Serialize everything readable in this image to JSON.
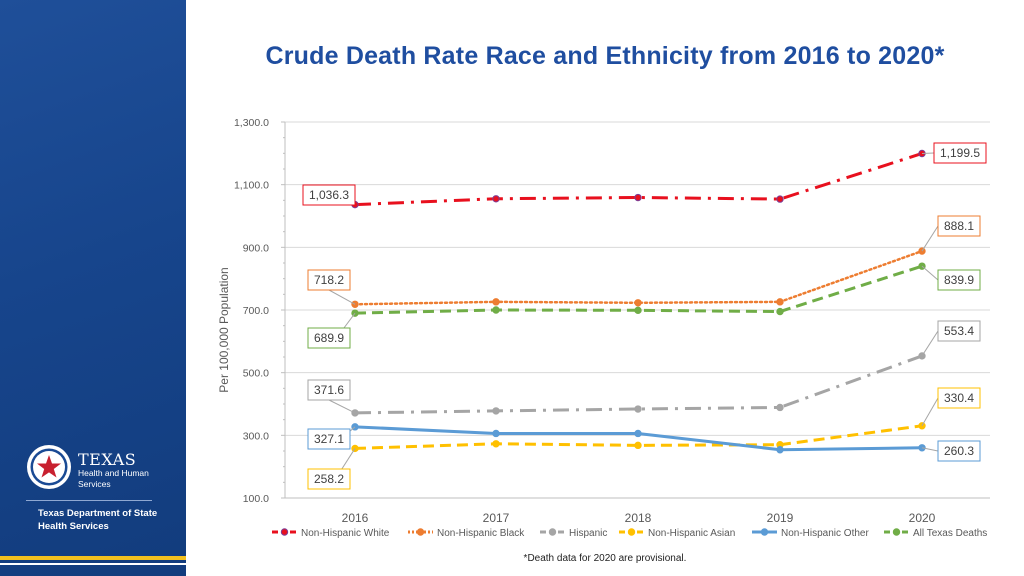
{
  "title": "Crude Death Rate Race and Ethnicity from 2016 to 2020*",
  "footnote": "*Death data for 2020 are provisional.",
  "branding": {
    "texas": "TEXAS",
    "hhs_line1": "Health and Human",
    "hhs_line2": "Services",
    "dept_line1": "Texas Department of State",
    "dept_line2": "Health Services",
    "colors": {
      "sidebar": "#1a4a94",
      "accent": "#f2c01e"
    }
  },
  "chart_data": {
    "type": "line",
    "title": "Crude Death Rate Race and Ethnicity from 2016 to 2020*",
    "xlabel": "",
    "ylabel": "Per 100,000 Population",
    "x": [
      "2016",
      "2017",
      "2018",
      "2019",
      "2020"
    ],
    "ylim": [
      100,
      1300
    ],
    "yticks": [
      100,
      300,
      500,
      700,
      900,
      1100,
      1300
    ],
    "ytick_labels": [
      "100.0",
      "300.0",
      "500.0",
      "700.0",
      "900.0",
      "1,100.0",
      "1,300.0"
    ],
    "grid": true,
    "legend": "bottom",
    "series": [
      {
        "name": "Non-Hispanic  White",
        "color": "#e8101e",
        "dash": "dashdot",
        "values": [
          1036.3,
          1055,
          1059,
          1054,
          1199.5
        ],
        "labels": [
          {
            "index": 0,
            "text": "1,036.3",
            "side": "left"
          },
          {
            "index": 4,
            "text": "1,199.5",
            "side": "right"
          }
        ]
      },
      {
        "name": "Non-Hispanic  Black",
        "color": "#ed7d31",
        "dash": "dot",
        "values": [
          718.2,
          726,
          723,
          726,
          888.1
        ],
        "labels": [
          {
            "index": 0,
            "text": "718.2",
            "side": "left"
          },
          {
            "index": 4,
            "text": "888.1",
            "side": "right"
          }
        ]
      },
      {
        "name": "Hispanic",
        "color": "#a5a5a5",
        "dash": "dashdot",
        "values": [
          371.6,
          378,
          384,
          389,
          553.4
        ],
        "labels": [
          {
            "index": 0,
            "text": "371.6",
            "side": "left"
          },
          {
            "index": 4,
            "text": "553.4",
            "side": "right"
          }
        ]
      },
      {
        "name": "Non-Hispanic Asian",
        "color": "#ffc000",
        "dash": "dash",
        "values": [
          258.2,
          273,
          268,
          270,
          330.4
        ],
        "labels": [
          {
            "index": 0,
            "text": "258.2",
            "side": "left"
          },
          {
            "index": 4,
            "text": "330.4",
            "side": "right"
          }
        ]
      },
      {
        "name": "Non-Hispanic Other",
        "color": "#5b9bd5",
        "dash": "solid",
        "values": [
          327.1,
          306,
          306,
          254,
          260.3
        ],
        "labels": [
          {
            "index": 0,
            "text": "327.1",
            "side": "left"
          },
          {
            "index": 4,
            "text": "260.3",
            "side": "right"
          }
        ]
      },
      {
        "name": "All Texas Deaths",
        "color": "#70ad47",
        "dash": "dash",
        "values": [
          689.9,
          700,
          699,
          695,
          839.9
        ],
        "labels": [
          {
            "index": 0,
            "text": "689.9",
            "side": "left"
          },
          {
            "index": 4,
            "text": "839.9",
            "side": "right"
          }
        ]
      }
    ]
  }
}
